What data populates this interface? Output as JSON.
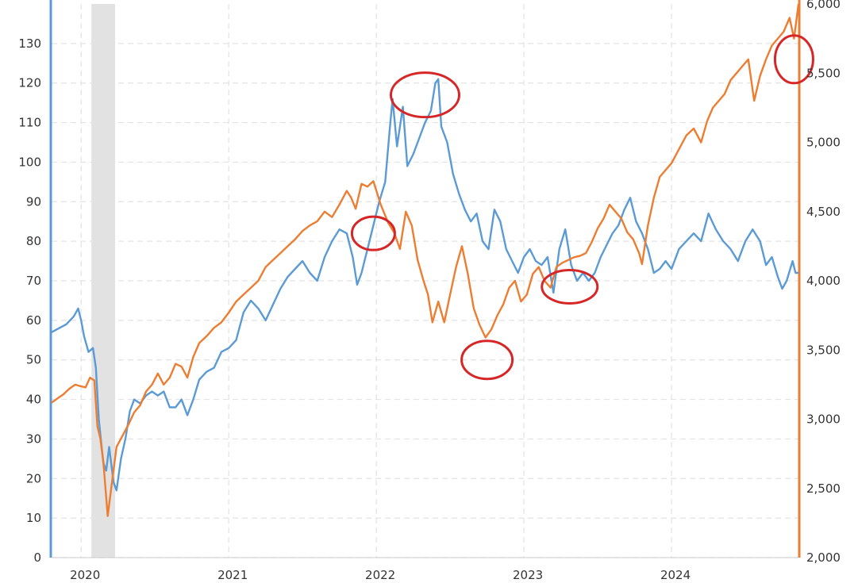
{
  "chart_data": {
    "type": "line",
    "title": "",
    "xlabel": "",
    "x_ticks": [
      "2020",
      "2021",
      "2022",
      "2023",
      "2024"
    ],
    "x_range": [
      2019.8,
      2024.86
    ],
    "y_left": {
      "label": "",
      "range": [
        0,
        140
      ],
      "ticks": [
        "0",
        "10",
        "20",
        "30",
        "40",
        "50",
        "60",
        "70",
        "80",
        "90",
        "100",
        "110",
        "120",
        "130"
      ]
    },
    "y_right": {
      "label": "",
      "range": [
        2000,
        6000
      ],
      "ticks": [
        "2,000",
        "2,500",
        "3,000",
        "3,500",
        "4,000",
        "4,500",
        "5,000",
        "5,500",
        "6,000"
      ]
    },
    "shaded_region": {
      "x": [
        2020.07,
        2020.23
      ],
      "color": "#e2e2e2"
    },
    "grid": true,
    "series": [
      {
        "axis": "left",
        "color": "#5b9bd5",
        "points": [
          [
            2019.8,
            57
          ],
          [
            2019.85,
            58
          ],
          [
            2019.9,
            59
          ],
          [
            2019.95,
            61
          ],
          [
            2019.98,
            63
          ],
          [
            2020.0,
            60
          ],
          [
            2020.02,
            56
          ],
          [
            2020.05,
            52
          ],
          [
            2020.08,
            53
          ],
          [
            2020.1,
            48
          ],
          [
            2020.12,
            35
          ],
          [
            2020.15,
            24
          ],
          [
            2020.17,
            22
          ],
          [
            2020.19,
            28
          ],
          [
            2020.22,
            19
          ],
          [
            2020.24,
            17
          ],
          [
            2020.27,
            25
          ],
          [
            2020.3,
            30
          ],
          [
            2020.33,
            37
          ],
          [
            2020.36,
            40
          ],
          [
            2020.4,
            39
          ],
          [
            2020.44,
            41
          ],
          [
            2020.48,
            42
          ],
          [
            2020.52,
            41
          ],
          [
            2020.56,
            42
          ],
          [
            2020.6,
            38
          ],
          [
            2020.64,
            38
          ],
          [
            2020.68,
            40
          ],
          [
            2020.72,
            36
          ],
          [
            2020.76,
            40
          ],
          [
            2020.8,
            45
          ],
          [
            2020.85,
            47
          ],
          [
            2020.9,
            48
          ],
          [
            2020.95,
            52
          ],
          [
            2021.0,
            53
          ],
          [
            2021.05,
            55
          ],
          [
            2021.1,
            62
          ],
          [
            2021.15,
            65
          ],
          [
            2021.2,
            63
          ],
          [
            2021.25,
            60
          ],
          [
            2021.3,
            64
          ],
          [
            2021.35,
            68
          ],
          [
            2021.4,
            71
          ],
          [
            2021.45,
            73
          ],
          [
            2021.5,
            75
          ],
          [
            2021.55,
            72
          ],
          [
            2021.6,
            70
          ],
          [
            2021.65,
            76
          ],
          [
            2021.7,
            80
          ],
          [
            2021.75,
            83
          ],
          [
            2021.8,
            82
          ],
          [
            2021.84,
            76
          ],
          [
            2021.87,
            69
          ],
          [
            2021.9,
            72
          ],
          [
            2021.94,
            78
          ],
          [
            2021.98,
            84
          ],
          [
            2022.02,
            90
          ],
          [
            2022.06,
            95
          ],
          [
            2022.09,
            108
          ],
          [
            2022.11,
            116
          ],
          [
            2022.14,
            104
          ],
          [
            2022.18,
            114
          ],
          [
            2022.21,
            99
          ],
          [
            2022.25,
            102
          ],
          [
            2022.29,
            106
          ],
          [
            2022.33,
            110
          ],
          [
            2022.37,
            113
          ],
          [
            2022.4,
            120
          ],
          [
            2022.42,
            121
          ],
          [
            2022.44,
            109
          ],
          [
            2022.48,
            105
          ],
          [
            2022.52,
            97
          ],
          [
            2022.56,
            92
          ],
          [
            2022.6,
            88
          ],
          [
            2022.64,
            85
          ],
          [
            2022.68,
            87
          ],
          [
            2022.72,
            80
          ],
          [
            2022.76,
            78
          ],
          [
            2022.8,
            88
          ],
          [
            2022.84,
            85
          ],
          [
            2022.88,
            78
          ],
          [
            2022.92,
            75
          ],
          [
            2022.96,
            72
          ],
          [
            2023.0,
            76
          ],
          [
            2023.04,
            78
          ],
          [
            2023.08,
            75
          ],
          [
            2023.12,
            74
          ],
          [
            2023.16,
            76
          ],
          [
            2023.2,
            67
          ],
          [
            2023.24,
            78
          ],
          [
            2023.28,
            83
          ],
          [
            2023.32,
            74
          ],
          [
            2023.36,
            70
          ],
          [
            2023.4,
            72
          ],
          [
            2023.44,
            70
          ],
          [
            2023.48,
            72
          ],
          [
            2023.52,
            76
          ],
          [
            2023.56,
            79
          ],
          [
            2023.6,
            82
          ],
          [
            2023.64,
            84
          ],
          [
            2023.68,
            88
          ],
          [
            2023.72,
            91
          ],
          [
            2023.76,
            85
          ],
          [
            2023.8,
            82
          ],
          [
            2023.84,
            78
          ],
          [
            2023.88,
            72
          ],
          [
            2023.92,
            73
          ],
          [
            2023.96,
            75
          ],
          [
            2024.0,
            73
          ],
          [
            2024.05,
            78
          ],
          [
            2024.1,
            80
          ],
          [
            2024.15,
            82
          ],
          [
            2024.2,
            80
          ],
          [
            2024.25,
            87
          ],
          [
            2024.3,
            83
          ],
          [
            2024.35,
            80
          ],
          [
            2024.4,
            78
          ],
          [
            2024.45,
            75
          ],
          [
            2024.5,
            80
          ],
          [
            2024.55,
            83
          ],
          [
            2024.6,
            80
          ],
          [
            2024.64,
            74
          ],
          [
            2024.68,
            76
          ],
          [
            2024.72,
            71
          ],
          [
            2024.75,
            68
          ],
          [
            2024.78,
            70
          ],
          [
            2024.82,
            75
          ],
          [
            2024.84,
            72
          ],
          [
            2024.86,
            72
          ]
        ]
      },
      {
        "axis": "right",
        "color": "#ed7d31",
        "points": [
          [
            2019.8,
            3120
          ],
          [
            2019.84,
            3150
          ],
          [
            2019.88,
            3180
          ],
          [
            2019.92,
            3220
          ],
          [
            2019.96,
            3250
          ],
          [
            2019.99,
            3240
          ],
          [
            2020.03,
            3230
          ],
          [
            2020.06,
            3300
          ],
          [
            2020.09,
            3280
          ],
          [
            2020.11,
            2950
          ],
          [
            2020.13,
            2860
          ],
          [
            2020.15,
            2700
          ],
          [
            2020.18,
            2300
          ],
          [
            2020.21,
            2550
          ],
          [
            2020.24,
            2800
          ],
          [
            2020.28,
            2880
          ],
          [
            2020.32,
            2960
          ],
          [
            2020.36,
            3050
          ],
          [
            2020.4,
            3100
          ],
          [
            2020.44,
            3200
          ],
          [
            2020.48,
            3250
          ],
          [
            2020.52,
            3330
          ],
          [
            2020.56,
            3250
          ],
          [
            2020.6,
            3300
          ],
          [
            2020.64,
            3400
          ],
          [
            2020.68,
            3380
          ],
          [
            2020.72,
            3300
          ],
          [
            2020.76,
            3450
          ],
          [
            2020.8,
            3550
          ],
          [
            2020.85,
            3600
          ],
          [
            2020.9,
            3660
          ],
          [
            2020.95,
            3700
          ],
          [
            2021.0,
            3770
          ],
          [
            2021.05,
            3850
          ],
          [
            2021.1,
            3900
          ],
          [
            2021.15,
            3950
          ],
          [
            2021.2,
            4000
          ],
          [
            2021.25,
            4100
          ],
          [
            2021.3,
            4150
          ],
          [
            2021.35,
            4200
          ],
          [
            2021.4,
            4250
          ],
          [
            2021.45,
            4300
          ],
          [
            2021.5,
            4360
          ],
          [
            2021.55,
            4400
          ],
          [
            2021.6,
            4430
          ],
          [
            2021.65,
            4500
          ],
          [
            2021.7,
            4460
          ],
          [
            2021.75,
            4550
          ],
          [
            2021.8,
            4650
          ],
          [
            2021.83,
            4600
          ],
          [
            2021.86,
            4520
          ],
          [
            2021.9,
            4700
          ],
          [
            2021.94,
            4680
          ],
          [
            2021.98,
            4720
          ],
          [
            2022.03,
            4550
          ],
          [
            2022.08,
            4420
          ],
          [
            2022.12,
            4350
          ],
          [
            2022.16,
            4230
          ],
          [
            2022.2,
            4500
          ],
          [
            2022.24,
            4400
          ],
          [
            2022.28,
            4150
          ],
          [
            2022.32,
            4000
          ],
          [
            2022.35,
            3900
          ],
          [
            2022.38,
            3700
          ],
          [
            2022.42,
            3850
          ],
          [
            2022.46,
            3700
          ],
          [
            2022.5,
            3900
          ],
          [
            2022.54,
            4100
          ],
          [
            2022.58,
            4250
          ],
          [
            2022.62,
            4050
          ],
          [
            2022.66,
            3800
          ],
          [
            2022.7,
            3680
          ],
          [
            2022.74,
            3590
          ],
          [
            2022.78,
            3650
          ],
          [
            2022.82,
            3750
          ],
          [
            2022.86,
            3830
          ],
          [
            2022.9,
            3950
          ],
          [
            2022.94,
            4000
          ],
          [
            2022.98,
            3850
          ],
          [
            2023.02,
            3900
          ],
          [
            2023.06,
            4050
          ],
          [
            2023.1,
            4100
          ],
          [
            2023.14,
            4000
          ],
          [
            2023.18,
            3950
          ],
          [
            2023.22,
            4100
          ],
          [
            2023.26,
            4130
          ],
          [
            2023.3,
            4150
          ],
          [
            2023.34,
            4170
          ],
          [
            2023.38,
            4180
          ],
          [
            2023.42,
            4200
          ],
          [
            2023.46,
            4280
          ],
          [
            2023.5,
            4380
          ],
          [
            2023.54,
            4450
          ],
          [
            2023.58,
            4550
          ],
          [
            2023.62,
            4500
          ],
          [
            2023.66,
            4450
          ],
          [
            2023.7,
            4350
          ],
          [
            2023.74,
            4300
          ],
          [
            2023.78,
            4200
          ],
          [
            2023.8,
            4120
          ],
          [
            2023.84,
            4400
          ],
          [
            2023.88,
            4600
          ],
          [
            2023.92,
            4750
          ],
          [
            2023.96,
            4800
          ],
          [
            2024.0,
            4850
          ],
          [
            2024.05,
            4950
          ],
          [
            2024.1,
            5050
          ],
          [
            2024.15,
            5100
          ],
          [
            2024.2,
            5000
          ],
          [
            2024.24,
            5150
          ],
          [
            2024.28,
            5250
          ],
          [
            2024.32,
            5300
          ],
          [
            2024.36,
            5350
          ],
          [
            2024.4,
            5450
          ],
          [
            2024.44,
            5500
          ],
          [
            2024.48,
            5550
          ],
          [
            2024.52,
            5600
          ],
          [
            2024.56,
            5300
          ],
          [
            2024.6,
            5480
          ],
          [
            2024.64,
            5600
          ],
          [
            2024.68,
            5700
          ],
          [
            2024.72,
            5750
          ],
          [
            2024.76,
            5800
          ],
          [
            2024.8,
            5900
          ],
          [
            2024.83,
            5750
          ],
          [
            2024.86,
            6000
          ]
        ]
      }
    ],
    "annotations": [
      {
        "type": "circle",
        "color": "#d62728",
        "x": 2021.98,
        "y_left": 82
      },
      {
        "type": "circle",
        "color": "#d62728",
        "x": 2022.33,
        "y_left": 117
      },
      {
        "type": "circle",
        "color": "#d62728",
        "x": 2022.75,
        "y_left": 50
      },
      {
        "type": "circle",
        "color": "#d62728",
        "x": 2023.31,
        "y_left": 68.5
      },
      {
        "type": "circle",
        "color": "#d62728",
        "x": 2024.83,
        "y_left": 126
      }
    ]
  }
}
